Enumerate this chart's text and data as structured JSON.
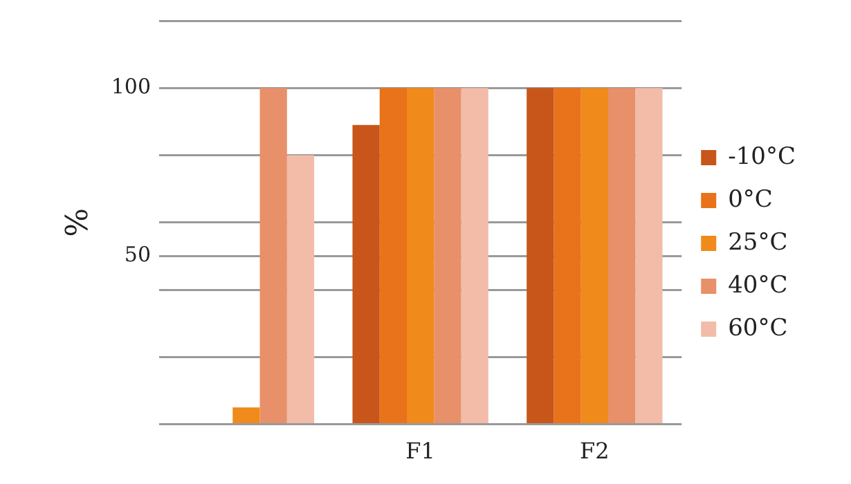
{
  "chart_data": {
    "type": "bar",
    "ylabel": "%",
    "categories": [
      null,
      "F1",
      "F2"
    ],
    "series": [
      {
        "name": "-10°C",
        "color": "#c8561a",
        "values": [
          0,
          89,
          100
        ]
      },
      {
        "name": "0°C",
        "color": "#e8731a",
        "values": [
          0,
          100,
          100
        ]
      },
      {
        "name": "25°C",
        "color": "#f08a1a",
        "values": [
          5,
          100,
          100
        ]
      },
      {
        "name": "40°C",
        "color": "#e8906a",
        "values": [
          100,
          100,
          100
        ]
      },
      {
        "name": "60°C",
        "color": "#f2bca8",
        "values": [
          80,
          100,
          100
        ]
      }
    ],
    "ylim": [
      0,
      120
    ],
    "yticks": [
      {
        "value": 0,
        "label": null
      },
      {
        "value": 20,
        "label": null
      },
      {
        "value": 40,
        "label": null
      },
      50,
      {
        "value": 60,
        "label": null
      },
      {
        "value": 80,
        "label": null
      },
      100,
      {
        "value": 120,
        "label": null
      }
    ],
    "grid": "y",
    "legend": "right"
  }
}
